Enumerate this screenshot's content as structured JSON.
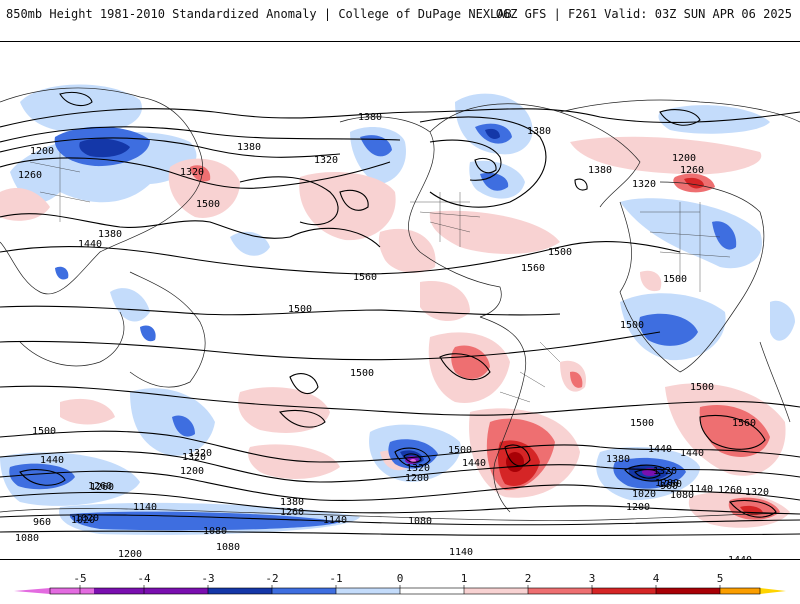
{
  "header": {
    "title": "850mb Height 1981-2010 Standardized Anomaly | College of DuPage NEXLAB",
    "run_info": "06Z GFS | F261 Valid: 03Z SUN APR 06 2025"
  },
  "colors": {
    "neg5": "#e36be0",
    "neg4": "#7a0fb0",
    "neg3": "#1437a8",
    "neg2": "#3e6ee0",
    "neg1": "#c4dcfb",
    "zero": "#ffffff",
    "pos1": "#f8d2d2",
    "pos2": "#ee6f71",
    "pos3": "#d52526",
    "pos4": "#a80006",
    "pos5": "#fb9e00",
    "pos6": "#ffd400"
  },
  "colorbar": {
    "ticks": [
      "-5",
      "-4",
      "-3",
      "-2",
      "-1",
      "0",
      "1",
      "2",
      "3",
      "4",
      "5"
    ]
  },
  "isohypses": {
    "labels": [
      "1380",
      "1380",
      "1320",
      "1200",
      "1260",
      "1320",
      "1380",
      "1440",
      "1500",
      "1560",
      "1500",
      "1500",
      "1500",
      "1440",
      "1380",
      "1320",
      "1200",
      "1260",
      "1140",
      "1080",
      "1020",
      "960",
      "1080",
      "1140",
      "1200",
      "1260",
      "1320",
      "1380",
      "1440",
      "1500",
      "1560",
      "1500",
      "1320",
      "1200",
      "1080",
      "1020",
      "960",
      "1140",
      "1260",
      "1320",
      "1440",
      "1200",
      "1260",
      "1380",
      "1440",
      "1500",
      "1560",
      "1380",
      "1320",
      "1260",
      "1200",
      "1500",
      "1500",
      "1500",
      "1440",
      "1320",
      "1260",
      "1200",
      "1140",
      "1080",
      "1020",
      "1080",
      "1140",
      "1200",
      "1080"
    ]
  }
}
